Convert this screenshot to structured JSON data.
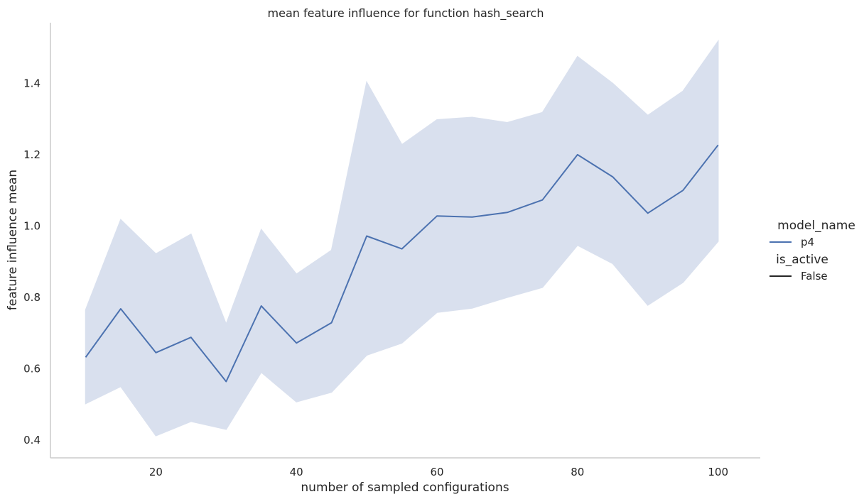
{
  "chart_data": {
    "type": "line",
    "title": "mean feature influence for function hash_search",
    "xlabel": "number of sampled configurations",
    "ylabel": "feature influence mean",
    "xlim": [
      5,
      106
    ],
    "ylim": [
      0.35,
      1.57
    ],
    "x_ticks": [
      20,
      40,
      60,
      80,
      100
    ],
    "y_ticks": [
      0.4,
      0.6,
      0.8,
      1.0,
      1.2,
      1.4
    ],
    "grid": false,
    "legend_position": "right",
    "x": [
      10,
      15,
      20,
      25,
      30,
      35,
      40,
      45,
      50,
      55,
      60,
      65,
      70,
      75,
      80,
      85,
      90,
      95,
      100
    ],
    "series": [
      {
        "name": "p4",
        "color": "#4c72b0",
        "band_color": "#d9e0ee",
        "values": [
          0.632,
          0.768,
          0.645,
          0.688,
          0.564,
          0.776,
          0.672,
          0.729,
          0.972,
          0.936,
          1.028,
          1.025,
          1.038,
          1.073,
          1.2,
          1.138,
          1.036,
          1.1,
          1.227
        ],
        "ci_lower": [
          0.502,
          0.55,
          0.412,
          0.452,
          0.43,
          0.59,
          0.507,
          0.534,
          0.638,
          0.672,
          0.758,
          0.77,
          0.8,
          0.828,
          0.946,
          0.895,
          0.778,
          0.842,
          0.957
        ],
        "ci_upper": [
          0.765,
          1.018,
          0.922,
          0.977,
          0.725,
          0.99,
          0.865,
          0.932,
          1.403,
          1.228,
          1.298,
          1.305,
          1.29,
          1.318,
          1.475,
          1.4,
          1.31,
          1.378,
          1.518
        ]
      }
    ],
    "legend": {
      "hue_title": "model_name",
      "hue_entries": [
        {
          "label": "p4",
          "color": "#4c72b0"
        }
      ],
      "style_title": "is_active",
      "style_entries": [
        {
          "label": "False",
          "color": "#262626"
        }
      ]
    },
    "axis_color": "#cccccc",
    "text_color": "#262626"
  }
}
